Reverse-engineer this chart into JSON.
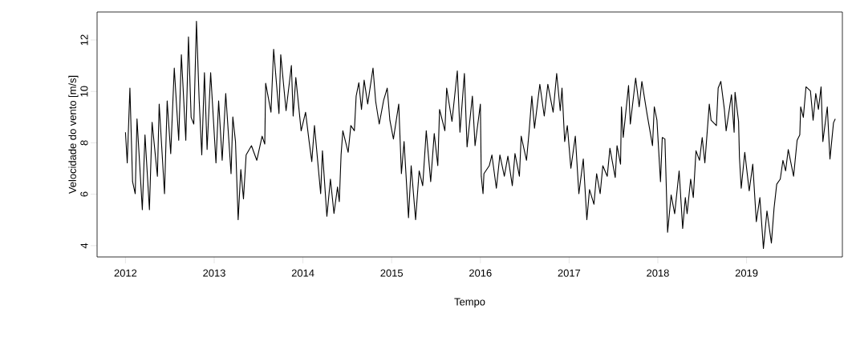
{
  "chart_data": {
    "type": "line",
    "xlabel": "Tempo",
    "ylabel": "Velocidade do vento [m/s]",
    "color": "#000000",
    "line_style": "solid",
    "marker": "none",
    "xlim": [
      2011.68,
      2020.08
    ],
    "ylim": [
      3.56,
      13.09
    ],
    "xticks": [
      2012,
      2013,
      2014,
      2015,
      2016,
      2017,
      2018,
      2019
    ],
    "yticks": [
      4,
      6,
      8,
      10,
      12
    ],
    "x": [
      2012.0,
      2012.02,
      2012.05,
      2012.08,
      2012.11,
      2012.13,
      2012.19,
      2012.22,
      2012.27,
      2012.3,
      2012.36,
      2012.38,
      2012.44,
      2012.47,
      2012.51,
      2012.55,
      2012.6,
      2012.63,
      2012.68,
      2012.71,
      2012.74,
      2012.77,
      2012.8,
      2012.83,
      2012.86,
      2012.89,
      2012.92,
      2012.96,
      2013.02,
      2013.05,
      2013.09,
      2013.13,
      2013.19,
      2013.21,
      2013.24,
      2013.27,
      2013.3,
      2013.33,
      2013.36,
      2013.42,
      2013.48,
      2013.54,
      2013.57,
      2013.58,
      2013.64,
      2013.67,
      2013.73,
      2013.75,
      2013.81,
      2013.87,
      2013.89,
      2013.92,
      2013.98,
      2014.03,
      2014.07,
      2014.1,
      2014.13,
      2014.2,
      2014.22,
      2014.27,
      2014.31,
      2014.35,
      2014.39,
      2014.41,
      2014.43,
      2014.45,
      2014.51,
      2014.54,
      2014.58,
      2014.6,
      2014.63,
      2014.66,
      2014.69,
      2014.73,
      2014.79,
      2014.82,
      2014.86,
      2014.91,
      2014.95,
      2014.98,
      2015.02,
      2015.08,
      2015.11,
      2015.14,
      2015.19,
      2015.22,
      2015.27,
      2015.31,
      2015.35,
      2015.39,
      2015.44,
      2015.48,
      2015.52,
      2015.54,
      2015.6,
      2015.62,
      2015.68,
      2015.74,
      2015.77,
      2015.82,
      2015.85,
      2015.91,
      2015.94,
      2016.0,
      2016.01,
      2016.03,
      2016.04,
      2016.1,
      2016.13,
      2016.18,
      2016.22,
      2016.27,
      2016.31,
      2016.36,
      2016.39,
      2016.44,
      2016.46,
      2016.52,
      2016.55,
      2016.58,
      2016.61,
      2016.67,
      2016.72,
      2016.76,
      2016.82,
      2016.86,
      2016.9,
      2016.92,
      2016.95,
      2016.98,
      2017.02,
      2017.07,
      2017.11,
      2017.16,
      2017.2,
      2017.23,
      2017.28,
      2017.31,
      2017.35,
      2017.38,
      2017.43,
      2017.46,
      2017.52,
      2017.54,
      2017.58,
      2017.59,
      2017.61,
      2017.67,
      2017.69,
      2017.75,
      2017.79,
      2017.82,
      2017.88,
      2017.94,
      2017.96,
      2017.99,
      2018.03,
      2018.05,
      2018.08,
      2018.11,
      2018.15,
      2018.19,
      2018.24,
      2018.28,
      2018.31,
      2018.33,
      2018.37,
      2018.4,
      2018.43,
      2018.47,
      2018.5,
      2018.53,
      2018.58,
      2018.6,
      2018.66,
      2018.68,
      2018.71,
      2018.75,
      2018.77,
      2018.83,
      2018.86,
      2018.87,
      2018.91,
      2018.92,
      2018.94,
      2018.98,
      2019.03,
      2019.07,
      2019.11,
      2019.15,
      2019.19,
      2019.23,
      2019.28,
      2019.31,
      2019.34,
      2019.38,
      2019.41,
      2019.44,
      2019.47,
      2019.53,
      2019.57,
      2019.6,
      2019.61,
      2019.64,
      2019.67,
      2019.72,
      2019.75,
      2019.78,
      2019.81,
      2019.84,
      2019.86,
      2019.91,
      2019.94,
      2019.98,
      2020.0
    ],
    "values": [
      8.41,
      7.22,
      10.13,
      6.49,
      6.02,
      8.93,
      5.4,
      8.31,
      5.4,
      8.8,
      6.7,
      9.51,
      6.02,
      9.63,
      7.58,
      10.91,
      8.1,
      11.43,
      8.1,
      12.12,
      8.99,
      8.73,
      12.73,
      9.71,
      7.53,
      10.73,
      7.74,
      10.73,
      7.22,
      9.63,
      7.32,
      9.92,
      6.8,
      9.01,
      8.05,
      5.01,
      6.96,
      5.82,
      7.53,
      7.89,
      7.32,
      8.26,
      7.95,
      10.32,
      9.19,
      11.64,
      9.14,
      11.43,
      9.25,
      11.01,
      9.04,
      10.54,
      8.47,
      9.19,
      8.05,
      7.27,
      8.67,
      6.02,
      7.69,
      5.14,
      6.59,
      5.25,
      6.28,
      5.71,
      7.53,
      8.47,
      7.63,
      8.67,
      8.47,
      9.82,
      10.34,
      9.3,
      10.44,
      9.51,
      10.91,
      9.61,
      8.73,
      9.66,
      10.13,
      8.88,
      8.15,
      9.51,
      6.8,
      8.05,
      5.09,
      7.11,
      5.01,
      6.91,
      6.33,
      8.47,
      6.49,
      8.36,
      7.11,
      9.3,
      8.47,
      10.13,
      8.83,
      10.8,
      8.41,
      10.7,
      7.84,
      9.82,
      7.89,
      9.51,
      6.7,
      6.02,
      6.8,
      7.11,
      7.53,
      6.23,
      7.53,
      6.7,
      7.48,
      6.33,
      7.58,
      6.7,
      8.26,
      7.32,
      8.47,
      9.82,
      8.57,
      10.28,
      9.04,
      10.28,
      9.19,
      10.7,
      9.25,
      10.13,
      8.05,
      8.67,
      7.01,
      8.26,
      6.02,
      7.37,
      5.01,
      6.18,
      5.61,
      6.8,
      6.02,
      7.11,
      6.7,
      7.79,
      6.65,
      7.89,
      7.17,
      9.4,
      8.21,
      10.23,
      8.73,
      10.52,
      9.4,
      10.39,
      9.09,
      7.89,
      9.4,
      8.88,
      6.49,
      8.21,
      8.15,
      4.52,
      5.97,
      5.24,
      6.91,
      4.67,
      5.87,
      5.24,
      6.59,
      5.87,
      7.69,
      7.32,
      8.21,
      7.22,
      9.51,
      8.88,
      8.67,
      10.13,
      10.39,
      9.3,
      8.47,
      9.87,
      8.41,
      9.97,
      8.83,
      7.43,
      6.23,
      7.63,
      6.13,
      7.17,
      4.93,
      5.87,
      3.89,
      5.35,
      4.1,
      5.46,
      6.39,
      6.59,
      7.32,
      6.91,
      7.74,
      6.7,
      8.1,
      8.31,
      9.4,
      8.99,
      10.18,
      10.02,
      8.88,
      9.92,
      9.3,
      10.18,
      8.05,
      9.4,
      7.37,
      8.78,
      8.93
    ]
  }
}
